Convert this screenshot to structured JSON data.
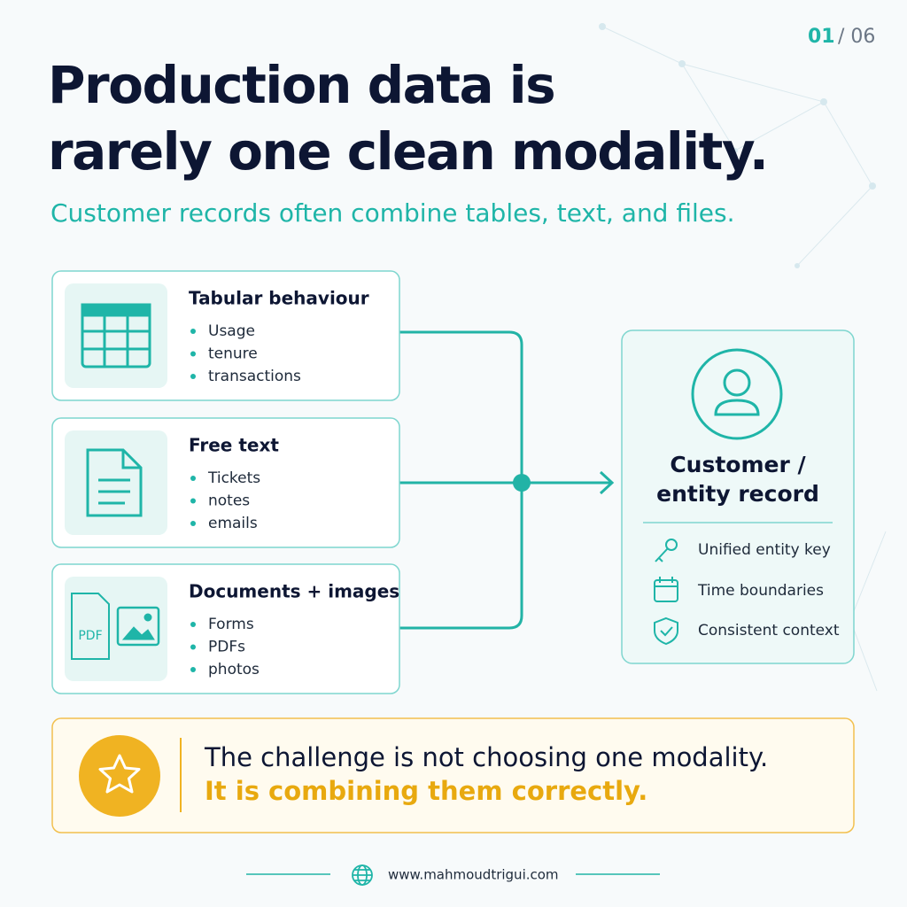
{
  "page_number": {
    "current": "01",
    "total": "/ 06"
  },
  "header": {
    "title_lines": [
      "Production data is",
      "rarely one clean modality."
    ],
    "subtitle": "Customer records often combine tables, text, and files."
  },
  "sources": [
    {
      "title": "Tabular behaviour",
      "items": [
        "Usage",
        "tenure",
        "transactions"
      ]
    },
    {
      "title": "Free text",
      "items": [
        "Tickets",
        "notes",
        "emails"
      ]
    },
    {
      "title": "Documents + images",
      "icon_label": "PDF",
      "items": [
        "Forms",
        "PDFs",
        "photos"
      ]
    }
  ],
  "target": {
    "title_lines": [
      "Customer /",
      "entity record"
    ],
    "features": [
      "Unified entity key",
      "Time boundaries",
      "Consistent context"
    ]
  },
  "callout": {
    "line1": "The challenge is not choosing one modality.",
    "line2": "It is combining them correctly."
  },
  "footer": {
    "url": "www.mahmoudtrigui.com"
  }
}
